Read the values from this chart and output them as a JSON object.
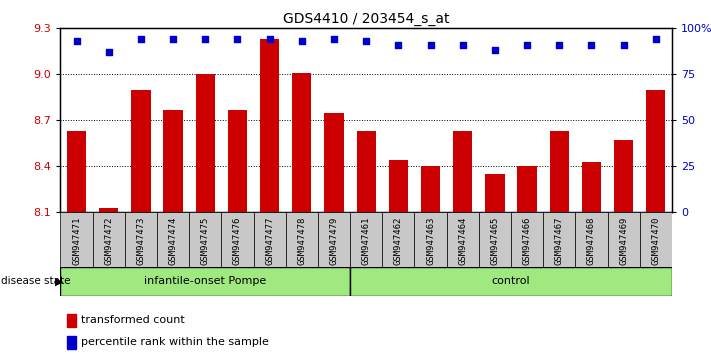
{
  "title": "GDS4410 / 203454_s_at",
  "samples": [
    "GSM947471",
    "GSM947472",
    "GSM947473",
    "GSM947474",
    "GSM947475",
    "GSM947476",
    "GSM947477",
    "GSM947478",
    "GSM947479",
    "GSM947461",
    "GSM947462",
    "GSM947463",
    "GSM947464",
    "GSM947465",
    "GSM947466",
    "GSM947467",
    "GSM947468",
    "GSM947469",
    "GSM947470"
  ],
  "bar_values": [
    8.63,
    8.13,
    8.9,
    8.77,
    9.0,
    8.77,
    9.23,
    9.01,
    8.75,
    8.63,
    8.44,
    8.4,
    8.63,
    8.35,
    8.4,
    8.63,
    8.43,
    8.57,
    8.9
  ],
  "percentile_values": [
    93,
    87,
    94,
    94,
    94,
    94,
    94,
    93,
    94,
    93,
    91,
    91,
    91,
    88,
    91,
    91,
    91,
    91,
    94
  ],
  "group_labels": [
    "infantile-onset Pompe",
    "control"
  ],
  "group_sizes": [
    9,
    10
  ],
  "bar_color": "#cc0000",
  "dot_color": "#0000cc",
  "ylim_left": [
    8.1,
    9.3
  ],
  "ylim_right": [
    0,
    100
  ],
  "yticks_left": [
    8.1,
    8.4,
    8.7,
    9.0,
    9.3
  ],
  "yticks_right": [
    0,
    25,
    50,
    75,
    100
  ],
  "grid_values": [
    8.4,
    8.7,
    9.0
  ],
  "legend_items": [
    "transformed count",
    "percentile rank within the sample"
  ],
  "bar_width": 0.6
}
